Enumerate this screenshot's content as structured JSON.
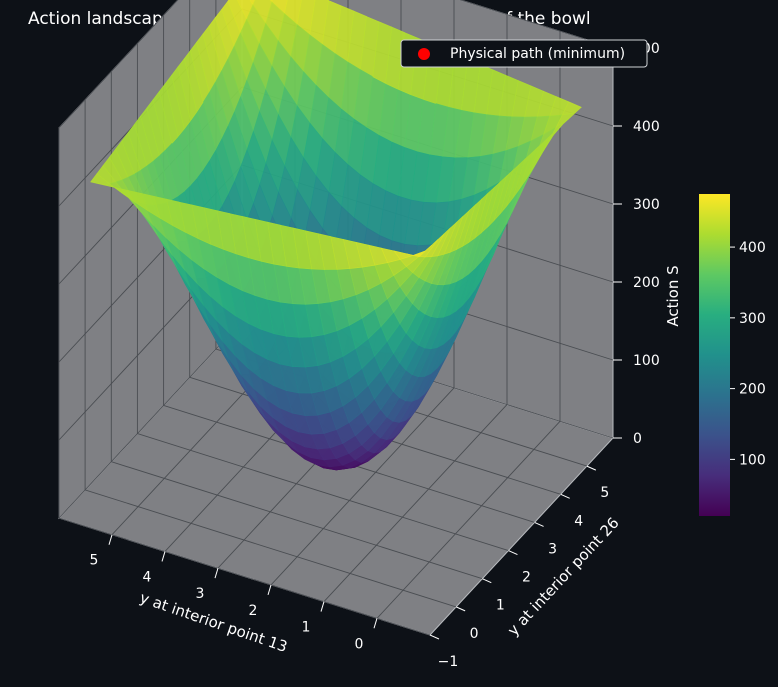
{
  "chart_data": {
    "type": "surface",
    "title": "Action landscape: the classical path sits at the bottom of the bowl",
    "xlabel": "y at interior point 13",
    "ylabel": "y at interior point 26",
    "zlabel": "Action S",
    "xlim": [
      -1,
      6
    ],
    "ylim": [
      -1,
      6
    ],
    "zlim": [
      0,
      500
    ],
    "x_ticks": [
      0,
      1,
      2,
      3,
      4,
      5
    ],
    "y_ticks": [
      "−1",
      0,
      1,
      2,
      3,
      4,
      5
    ],
    "z_ticks": [
      0,
      100,
      200,
      300,
      400,
      500
    ],
    "colormap": "viridis",
    "colorbar": {
      "ticks": [
        100,
        200,
        300,
        400
      ],
      "range": [
        20,
        475
      ]
    },
    "surface": {
      "form": "bowl",
      "grid": {
        "x_range": [
          -0.6,
          5.6
        ],
        "y_range": [
          -0.6,
          5.6
        ]
      },
      "minimum": {
        "x": 2.5,
        "y": 2.5,
        "z": 20
      },
      "corner_values": {
        "x_max_y_max": 475,
        "x_min_y_min": 462,
        "x_max_y_min": 425,
        "x_min_y_max": 430
      }
    },
    "legend": {
      "entries": [
        {
          "label": "Physical path (minimum)",
          "color": "#ff0000"
        }
      ],
      "placement": "top-right"
    },
    "grid": true,
    "colors": {
      "background": "#0d1117",
      "pane": "#7f8084",
      "marker": "#ff0000"
    }
  }
}
